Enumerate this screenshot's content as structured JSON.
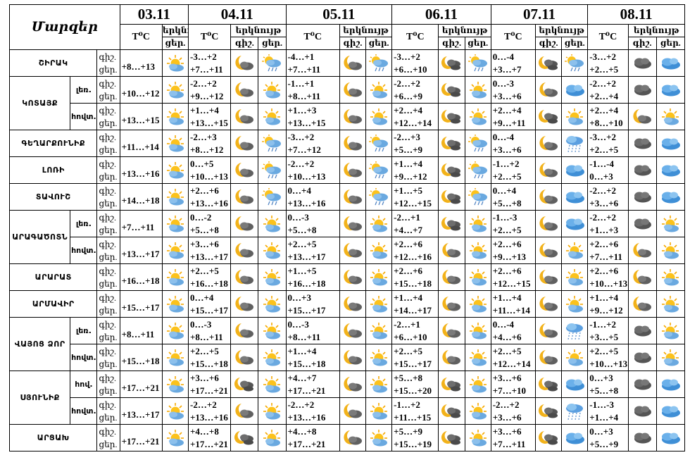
{
  "header": {
    "regions_title": "Մարզեր",
    "days": [
      {
        "date": "03.11",
        "temp_label": "T⁰C",
        "sky_label": "երկնույ",
        "night_label": "",
        "day_label": "ցեր."
      },
      {
        "date": "04.11",
        "temp_label": "T⁰C",
        "sky_label": "երկնույթ",
        "night_label": "գիշ.",
        "day_label": "ցեր."
      },
      {
        "date": "05.11",
        "temp_label": "T⁰C",
        "sky_label": "երկնույթ",
        "night_label": "գիշ.",
        "day_label": "ցեր."
      },
      {
        "date": "06.11",
        "temp_label": "T⁰C",
        "sky_label": "երկնույթ",
        "night_label": "գիշ.",
        "day_label": "ցեր."
      },
      {
        "date": "07.11",
        "temp_label": "T⁰C",
        "sky_label": "երկնույթ",
        "night_label": "գիշ.",
        "day_label": "ցեր."
      },
      {
        "date": "08.11",
        "temp_label": "T⁰C",
        "sky_label": "երկնույթ",
        "night_label": "գիշ.",
        "day_label": "ցեր."
      }
    ]
  },
  "tod": {
    "night": "գիշ.",
    "day": "ցեր."
  },
  "rows": [
    {
      "region": "ՇԻՐԱԿ",
      "sub": "",
      "d1": {
        "t": "+8…+13",
        "i": "sun"
      },
      "days": [
        {
          "t1": "-3…+2",
          "t2": "+7…+11",
          "n": "moon",
          "d": "sunrain"
        },
        {
          "t1": "-4…+1",
          "t2": "+7…+11",
          "n": "moon",
          "d": "sunrain"
        },
        {
          "t1": "-3…+2",
          "t2": "+6…+10",
          "n": "mooncloud",
          "d": "sunrain"
        },
        {
          "t1": "0…-4",
          "t2": "+3…+7",
          "n": "mooncloud",
          "d": "sunrain"
        },
        {
          "t1": "-3…+2",
          "t2": "+2…+5",
          "n": "cloud",
          "d": "bluecloud"
        }
      ]
    },
    {
      "region": "ԿՈՏԱՅՔ",
      "sub": "լեռ.",
      "d1": {
        "t": "+10…+12",
        "i": "sun"
      },
      "days": [
        {
          "t1": "-2…+2",
          "t2": "+9…+12",
          "n": "moon",
          "d": "sun"
        },
        {
          "t1": "-1…+1",
          "t2": "+8…+11",
          "n": "moon",
          "d": "sun"
        },
        {
          "t1": "-2…+2",
          "t2": "+6…+9",
          "n": "mooncloud",
          "d": "sun"
        },
        {
          "t1": "0…-3",
          "t2": "+3…+6",
          "n": "moon",
          "d": "bluecloud"
        },
        {
          "t1": "-2…+2",
          "t2": "+2…+4",
          "n": "cloud",
          "d": "bluecloud"
        }
      ]
    },
    {
      "region": "",
      "sub": "հովտ.",
      "d1": {
        "t": "+13…+15",
        "i": "sun"
      },
      "days": [
        {
          "t1": "+1…+4",
          "t2": "+13…+15",
          "n": "moon",
          "d": "sun"
        },
        {
          "t1": "+1…+3",
          "t2": "+13…+15",
          "n": "moon",
          "d": "sun"
        },
        {
          "t1": "+2…+4",
          "t2": "+12…+14",
          "n": "mooncloud",
          "d": "sun"
        },
        {
          "t1": "+2…+4",
          "t2": "+9…+11",
          "n": "mooncloud",
          "d": "sun"
        },
        {
          "t1": "+2…+4",
          "t2": "+8…+10",
          "n": "moon",
          "d": "sun"
        }
      ]
    },
    {
      "region": "ԳԵՂԱՐՔՈՒՆԻՔ",
      "sub": "",
      "d1": {
        "t": "+11…+14",
        "i": "sun"
      },
      "days": [
        {
          "t1": "-2…+3",
          "t2": "+8…+12",
          "n": "moon",
          "d": "sunrain"
        },
        {
          "t1": "-3…+2",
          "t2": "+7…+12",
          "n": "moon",
          "d": "sunrain"
        },
        {
          "t1": "-2…+3",
          "t2": "+5…+9",
          "n": "mooncloud",
          "d": "sunrain"
        },
        {
          "t1": "0…-4",
          "t2": "+3…+6",
          "n": "moon",
          "d": "rain"
        },
        {
          "t1": "-3…+2",
          "t2": "+2…+5",
          "n": "cloud",
          "d": "bluecloud"
        }
      ]
    },
    {
      "region": "ԼՈՌԻ",
      "sub": "",
      "d1": {
        "t": "+13…+16",
        "i": "sun"
      },
      "days": [
        {
          "t1": "0…+5",
          "t2": "+10…+13",
          "n": "moon",
          "d": "sunrain"
        },
        {
          "t1": "-2…+2",
          "t2": "+10…+13",
          "n": "moon",
          "d": "sunrain"
        },
        {
          "t1": "+1…+4",
          "t2": "+9…+12",
          "n": "mooncloud",
          "d": "sunrain"
        },
        {
          "t1": "-1…+2",
          "t2": "+2…+5",
          "n": "moon",
          "d": "bluecloud"
        },
        {
          "t1": "-1…-4",
          "t2": "0…+3",
          "n": "cloud",
          "d": "bluecloud"
        }
      ]
    },
    {
      "region": "ՏԱՎՈՒՇ",
      "sub": "",
      "d1": {
        "t": "+14…+18",
        "i": "sun"
      },
      "days": [
        {
          "t1": "+2…+6",
          "t2": "+13…+16",
          "n": "moon",
          "d": "sunrain"
        },
        {
          "t1": "0…+4",
          "t2": "+13…+16",
          "n": "moon",
          "d": "sunrain"
        },
        {
          "t1": "+1…+5",
          "t2": "+12…+15",
          "n": "mooncloud",
          "d": "sunrain"
        },
        {
          "t1": "0…+4",
          "t2": "+5…+8",
          "n": "moon",
          "d": "bluecloud"
        },
        {
          "t1": "-2…+2",
          "t2": "+3…+6",
          "n": "cloud",
          "d": "bluecloud"
        }
      ]
    },
    {
      "region": "ԱՐԱԳԱԾՈՏՆ",
      "sub": "լեռ.",
      "d1": {
        "t": "+7…+11",
        "i": "sun"
      },
      "days": [
        {
          "t1": "0…-2",
          "t2": "+5…+8",
          "n": "moon",
          "d": "sun"
        },
        {
          "t1": "0…-3",
          "t2": "+5…+8",
          "n": "moon",
          "d": "sun"
        },
        {
          "t1": "-2…+1",
          "t2": "+4…+7",
          "n": "mooncloud",
          "d": "sun"
        },
        {
          "t1": "-1…-3",
          "t2": "+2…+5",
          "n": "moon",
          "d": "bluecloud"
        },
        {
          "t1": "-2…+2",
          "t2": "+1…+3",
          "n": "cloud",
          "d": "sun"
        }
      ]
    },
    {
      "region": "",
      "sub": "հովտ.",
      "d1": {
        "t": "+13…+17",
        "i": "sun"
      },
      "days": [
        {
          "t1": "+3…+6",
          "t2": "+13…+17",
          "n": "moon",
          "d": "sun"
        },
        {
          "t1": "+2…+5",
          "t2": "+13…+17",
          "n": "moon",
          "d": "sun"
        },
        {
          "t1": "+2…+6",
          "t2": "+12…+16",
          "n": "moon",
          "d": "sun"
        },
        {
          "t1": "+2…+6",
          "t2": "+9…+13",
          "n": "moon",
          "d": "sun"
        },
        {
          "t1": "+2…+6",
          "t2": "+7…+11",
          "n": "moon",
          "d": "sun"
        }
      ]
    },
    {
      "region": "ԱՐԱՐԱՏ",
      "sub": "",
      "d1": {
        "t": "+16…+18",
        "i": "sun"
      },
      "days": [
        {
          "t1": "+2…+5",
          "t2": "+16…+18",
          "n": "moon",
          "d": "sun"
        },
        {
          "t1": "+1…+5",
          "t2": "+16…+18",
          "n": "moon",
          "d": "sun"
        },
        {
          "t1": "+2…+6",
          "t2": "+15…+18",
          "n": "moon",
          "d": "sun"
        },
        {
          "t1": "+2…+6",
          "t2": "+12…+15",
          "n": "moon",
          "d": "sun"
        },
        {
          "t1": "+2…+6",
          "t2": "+10…+13",
          "n": "moon",
          "d": "sun"
        }
      ]
    },
    {
      "region": "ԱՐՄԱՎԻՐ",
      "sub": "",
      "d1": {
        "t": "+15…+17",
        "i": "sun"
      },
      "days": [
        {
          "t1": "0…+4",
          "t2": "+15…+17",
          "n": "moon",
          "d": "sun"
        },
        {
          "t1": "0…+3",
          "t2": "+15…+17",
          "n": "moon",
          "d": "sun"
        },
        {
          "t1": "+1…+4",
          "t2": "+14…+17",
          "n": "moon",
          "d": "sun"
        },
        {
          "t1": "+1…+4",
          "t2": "+11…+14",
          "n": "moon",
          "d": "sun"
        },
        {
          "t1": "+1…+4",
          "t2": "+9…+12",
          "n": "moon",
          "d": "sun"
        }
      ]
    },
    {
      "region": "ՎԱՅՈՑ ՁՈՐ",
      "sub": "լեռ.",
      "d1": {
        "t": "+8…+11",
        "i": "sun"
      },
      "days": [
        {
          "t1": "0…-3",
          "t2": "+8…+11",
          "n": "moon",
          "d": "sun"
        },
        {
          "t1": "0…-3",
          "t2": "+8…+11",
          "n": "moon",
          "d": "sun"
        },
        {
          "t1": "-2…+1",
          "t2": "+6…+10",
          "n": "moon",
          "d": "sun"
        },
        {
          "t1": "0…-4",
          "t2": "+4…+6",
          "n": "moon",
          "d": "rain"
        },
        {
          "t1": "-1…+2",
          "t2": "+3…+5",
          "n": "cloud",
          "d": "sun"
        }
      ]
    },
    {
      "region": "",
      "sub": "հովտ.",
      "d1": {
        "t": "+15…+18",
        "i": "sun"
      },
      "days": [
        {
          "t1": "+2…+5",
          "t2": "+15…+18",
          "n": "moon",
          "d": "sun"
        },
        {
          "t1": "+1…+4",
          "t2": "+15…+18",
          "n": "moon",
          "d": "sun"
        },
        {
          "t1": "+2…+5",
          "t2": "+15…+17",
          "n": "moon",
          "d": "sun"
        },
        {
          "t1": "+2…+5",
          "t2": "+12…+14",
          "n": "moon",
          "d": "sun"
        },
        {
          "t1": "+2…+5",
          "t2": "+10…+13",
          "n": "cloud",
          "d": "sun"
        }
      ]
    },
    {
      "region": "ՍՅՈՒՆԻՔ",
      "sub": "հով.",
      "d1": {
        "t": "+17…+21",
        "i": "sun"
      },
      "days": [
        {
          "t1": "+3…+6",
          "t2": "+17…+21",
          "n": "mooncloud",
          "d": "sun"
        },
        {
          "t1": "+4…+7",
          "t2": "+17…+21",
          "n": "moon",
          "d": "sun"
        },
        {
          "t1": "+5…+8",
          "t2": "+15…+20",
          "n": "mooncloud",
          "d": "sun"
        },
        {
          "t1": "+3…+6",
          "t2": "+7…+10",
          "n": "mooncloud",
          "d": "bluecloud"
        },
        {
          "t1": "0…+3",
          "t2": "+5…+8",
          "n": "cloud",
          "d": "bluecloud"
        }
      ]
    },
    {
      "region": "",
      "sub": "հովտ.",
      "d1": {
        "t": "+13…+17",
        "i": "sun"
      },
      "days": [
        {
          "t1": "-2…+2",
          "t2": "+13…+16",
          "n": "moon",
          "d": "sun"
        },
        {
          "t1": "-2…+2",
          "t2": "+13…+16",
          "n": "moon",
          "d": "sun"
        },
        {
          "t1": "-1…+2",
          "t2": "+11…+15",
          "n": "mooncloud",
          "d": "sun"
        },
        {
          "t1": "-2…+2",
          "t2": "+3…+6",
          "n": "mooncloud",
          "d": "rain"
        },
        {
          "t1": "-1…-3",
          "t2": "+1…+4",
          "n": "cloud",
          "d": "bluecloud"
        }
      ]
    },
    {
      "region": "ԱՐՑԱԽ",
      "sub": "",
      "d1": {
        "t": "+17…+21",
        "i": "sun"
      },
      "days": [
        {
          "t1": "+4…+8",
          "t2": "+17…+21",
          "n": "mooncloud",
          "d": "sun"
        },
        {
          "t1": "+4…+8",
          "t2": "+17…+21",
          "n": "moon",
          "d": "sun"
        },
        {
          "t1": "+5…+9",
          "t2": "+15…+19",
          "n": "mooncloud",
          "d": "sun"
        },
        {
          "t1": "+3…+6",
          "t2": "+7…+11",
          "n": "mooncloud",
          "d": "bluecloud"
        },
        {
          "t1": "0…+3",
          "t2": "+5…+9",
          "n": "cloud",
          "d": "bluecloud"
        }
      ]
    }
  ]
}
